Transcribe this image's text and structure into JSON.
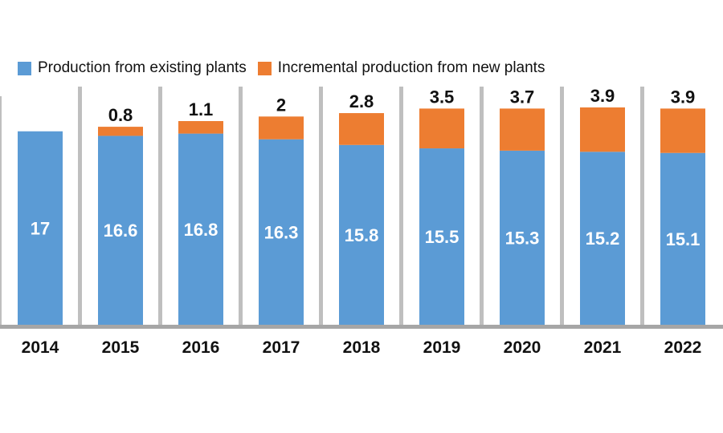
{
  "chart_data": {
    "type": "bar",
    "stacked": true,
    "categories": [
      "2014",
      "2015",
      "2016",
      "2017",
      "2018",
      "2019",
      "2020",
      "2021",
      "2022"
    ],
    "series": [
      {
        "name": "Production from existing plants",
        "color": "#5B9BD5",
        "values": [
          17,
          16.6,
          16.8,
          16.3,
          15.8,
          15.5,
          15.3,
          15.2,
          15.1
        ]
      },
      {
        "name": "Incremental production from new plants",
        "color": "#ED7D31",
        "values": [
          null,
          0.8,
          1.1,
          2,
          2.8,
          3.5,
          3.7,
          3.9,
          3.9
        ]
      }
    ],
    "title": "",
    "xlabel": "",
    "ylabel": "",
    "ylim": [
      0,
      21
    ],
    "grid": false,
    "legend": "top-left",
    "separator_color": "#BFBFBF"
  }
}
